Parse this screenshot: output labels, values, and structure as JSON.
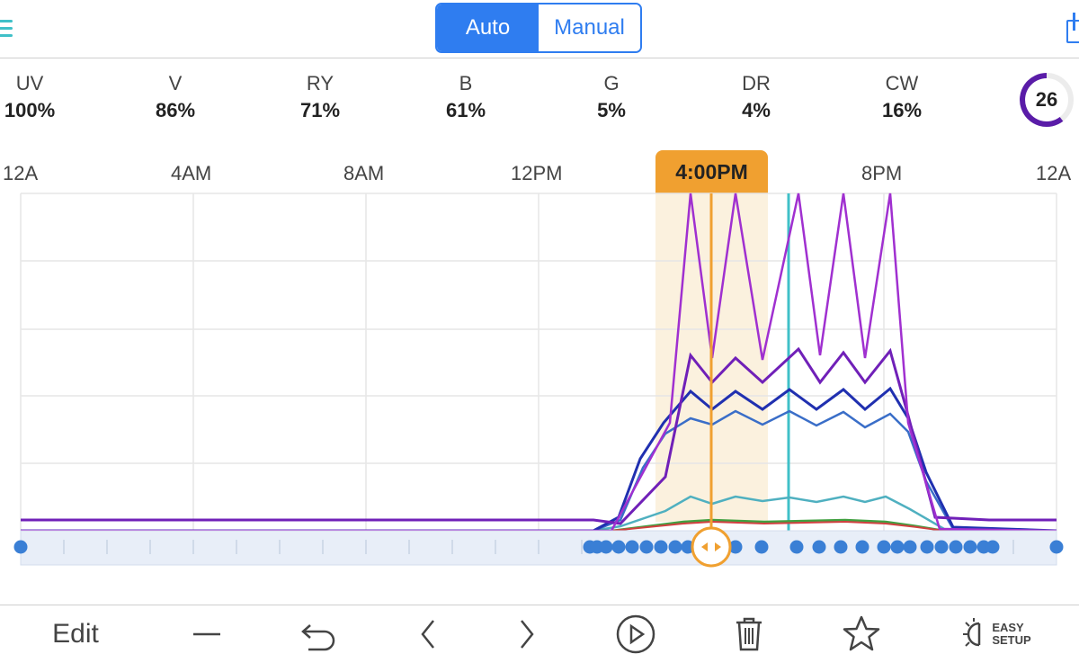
{
  "header": {
    "mode_auto_label": "Auto",
    "mode_manual_label": "Manual",
    "selected_mode": "Auto"
  },
  "channels": [
    {
      "name": "UV",
      "value": "100%"
    },
    {
      "name": "V",
      "value": "86%"
    },
    {
      "name": "RY",
      "value": "71%"
    },
    {
      "name": "B",
      "value": "61%"
    },
    {
      "name": "G",
      "value": "5%"
    },
    {
      "name": "DR",
      "value": "4%"
    },
    {
      "name": "CW",
      "value": "16%"
    }
  ],
  "power_ring": {
    "value": "26"
  },
  "timeline": {
    "labels": [
      "12A",
      "4AM",
      "8AM",
      "12PM",
      "4:00PM",
      "8PM",
      "12A"
    ],
    "selected_time": "4:00PM"
  },
  "colors": {
    "accent": "#2f7df0",
    "selection": "#f0a030",
    "current_time": "#40c0c8",
    "uv": "#a030d0",
    "v": "#7020b8",
    "ry": "#2030b0",
    "b": "#3a6ec8",
    "cw": "#4fb0c0",
    "g": "#40a040",
    "dr": "#d04040"
  },
  "toolbar": {
    "edit_label": "Edit",
    "easy_setup_line1": "EASY",
    "easy_setup_line2": "SETUP",
    "icons": [
      "minus-icon",
      "undo-icon",
      "chevron-left-icon",
      "chevron-right-icon",
      "play-icon",
      "trash-icon",
      "star-icon",
      "easy-setup-icon"
    ]
  }
}
